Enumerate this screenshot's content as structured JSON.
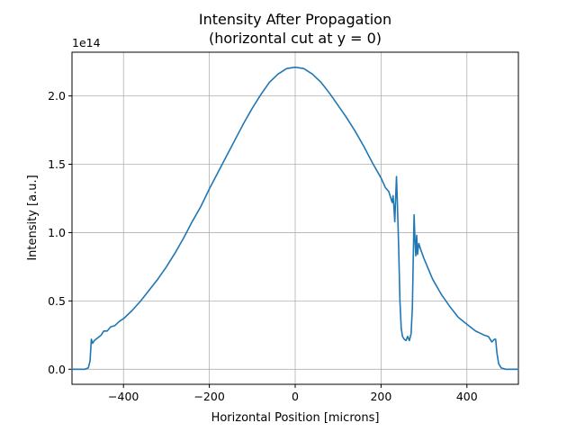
{
  "chart_data": {
    "type": "line",
    "title": "Intensity After Propagation",
    "subtitle": "(horizontal cut at y = 0)",
    "xlabel": "Horizontal Position [microns]",
    "ylabel": "Intensity [a.u.]",
    "y_offset_label": "1e14",
    "xlim": [
      -520,
      520
    ],
    "ylim": [
      -0.11,
      2.32
    ],
    "y_multiplier": 100000000000000.0,
    "grid": true,
    "line_color": "#1f77b4",
    "xticks": [
      {
        "value": -400,
        "label": "−400"
      },
      {
        "value": -200,
        "label": "−200"
      },
      {
        "value": 0,
        "label": "0"
      },
      {
        "value": 200,
        "label": "200"
      },
      {
        "value": 400,
        "label": "400"
      }
    ],
    "yticks": [
      {
        "value": 0.0,
        "label": "0.0"
      },
      {
        "value": 0.5,
        "label": "0.5"
      },
      {
        "value": 1.0,
        "label": "1.0"
      },
      {
        "value": 1.5,
        "label": "1.5"
      },
      {
        "value": 2.0,
        "label": "2.0"
      }
    ],
    "series": [
      {
        "points": [
          [
            -520,
            0.0
          ],
          [
            -490,
            0.0
          ],
          [
            -482,
            0.01
          ],
          [
            -478,
            0.06
          ],
          [
            -476,
            0.16
          ],
          [
            -475,
            0.22
          ],
          [
            -472,
            0.19
          ],
          [
            -468,
            0.21
          ],
          [
            -460,
            0.23
          ],
          [
            -452,
            0.25
          ],
          [
            -446,
            0.28
          ],
          [
            -438,
            0.28
          ],
          [
            -430,
            0.31
          ],
          [
            -420,
            0.32
          ],
          [
            -410,
            0.35
          ],
          [
            -400,
            0.37
          ],
          [
            -380,
            0.43
          ],
          [
            -360,
            0.5
          ],
          [
            -340,
            0.58
          ],
          [
            -320,
            0.66
          ],
          [
            -300,
            0.75
          ],
          [
            -280,
            0.85
          ],
          [
            -260,
            0.96
          ],
          [
            -240,
            1.08
          ],
          [
            -220,
            1.19
          ],
          [
            -200,
            1.32
          ],
          [
            -180,
            1.44
          ],
          [
            -160,
            1.56
          ],
          [
            -140,
            1.68
          ],
          [
            -120,
            1.8
          ],
          [
            -100,
            1.91
          ],
          [
            -80,
            2.01
          ],
          [
            -60,
            2.1
          ],
          [
            -40,
            2.16
          ],
          [
            -20,
            2.2
          ],
          [
            0,
            2.21
          ],
          [
            20,
            2.2
          ],
          [
            40,
            2.16
          ],
          [
            60,
            2.1
          ],
          [
            80,
            2.02
          ],
          [
            100,
            1.93
          ],
          [
            120,
            1.84
          ],
          [
            140,
            1.74
          ],
          [
            160,
            1.63
          ],
          [
            180,
            1.51
          ],
          [
            200,
            1.4
          ],
          [
            210,
            1.33
          ],
          [
            218,
            1.3
          ],
          [
            222,
            1.26
          ],
          [
            226,
            1.22
          ],
          [
            228,
            1.27
          ],
          [
            230,
            1.19
          ],
          [
            232,
            1.08
          ],
          [
            234,
            1.25
          ],
          [
            236,
            1.41
          ],
          [
            238,
            1.22
          ],
          [
            241,
            0.9
          ],
          [
            244,
            0.5
          ],
          [
            247,
            0.3
          ],
          [
            250,
            0.24
          ],
          [
            254,
            0.22
          ],
          [
            258,
            0.21
          ],
          [
            262,
            0.24
          ],
          [
            266,
            0.21
          ],
          [
            270,
            0.26
          ],
          [
            273,
            0.45
          ],
          [
            275,
            0.8
          ],
          [
            277,
            1.13
          ],
          [
            279,
            0.95
          ],
          [
            281,
            0.83
          ],
          [
            283,
            0.98
          ],
          [
            285,
            0.84
          ],
          [
            288,
            0.92
          ],
          [
            292,
            0.88
          ],
          [
            300,
            0.81
          ],
          [
            320,
            0.66
          ],
          [
            340,
            0.55
          ],
          [
            360,
            0.46
          ],
          [
            380,
            0.38
          ],
          [
            400,
            0.33
          ],
          [
            420,
            0.28
          ],
          [
            440,
            0.25
          ],
          [
            450,
            0.24
          ],
          [
            458,
            0.2
          ],
          [
            464,
            0.22
          ],
          [
            467,
            0.22
          ],
          [
            470,
            0.12
          ],
          [
            474,
            0.04
          ],
          [
            480,
            0.01
          ],
          [
            490,
            0.0
          ],
          [
            520,
            0.0
          ]
        ]
      }
    ]
  }
}
